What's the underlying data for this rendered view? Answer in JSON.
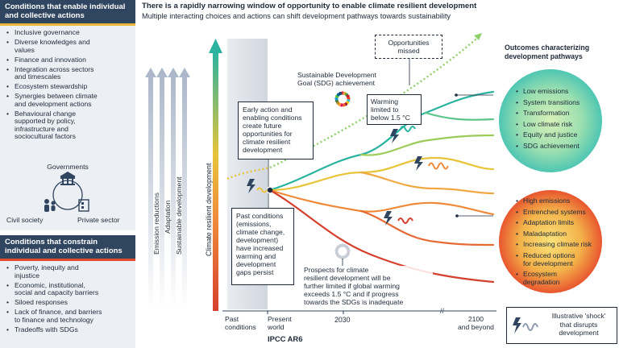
{
  "header": {
    "title": "There is a rapidly narrowing window of opportunity to enable climate resilient development",
    "subtitle": "Multiple interacting choices and actions can shift development pathways towards sustainability"
  },
  "enable_panel": {
    "title_line1": "Conditions that enable individual",
    "title_line2": "and collective actions",
    "items": [
      [
        "Inclusive governance"
      ],
      [
        "Diverse knowledges and",
        "values"
      ],
      [
        "Finance and innovation"
      ],
      [
        "Integration across sectors",
        "and timescales"
      ],
      [
        "Ecosystem stewardship"
      ],
      [
        "Synergies between climate",
        "and development actions"
      ],
      [
        "Behavioural change",
        "supported by policy,",
        "infrastructure and",
        "sociocultural factors"
      ]
    ]
  },
  "actors": {
    "governments": "Governments",
    "civil_society": "Civil society",
    "private_sector": "Private sector"
  },
  "constrain_panel": {
    "title_line1": "Conditions that constrain",
    "title_line2": "individual and collective actions",
    "items": [
      [
        "Poverty, inequity and",
        "injustice"
      ],
      [
        "Economic, institutional,",
        "social and capacity barriers"
      ],
      [
        "Siloed responses"
      ],
      [
        "Lack of finance, and barriers",
        "to finance and technology"
      ],
      [
        "Tradeoffs with SDGs"
      ]
    ]
  },
  "arrows": {
    "emission": "Emission reductions",
    "adaptation": "Adaptation",
    "sustainable": "Sustainable development",
    "crd_axis": "Climate resilient development"
  },
  "callouts": {
    "opportunities": [
      "Opportunities",
      "missed"
    ],
    "sdg": [
      "Sustainable Development",
      "Goal (SDG) achievement"
    ],
    "warming": [
      "Warming",
      "limited to",
      "below 1.5 °C"
    ],
    "early_action": [
      "Early action and",
      "enabling conditions",
      "create future",
      "opportunities for",
      "climate resilient",
      "development"
    ],
    "past_conditions": [
      "Past conditions",
      "(emissions,",
      "climate change,",
      "development)",
      "have increased",
      "warming and",
      "development",
      "gaps persist"
    ],
    "prospects": [
      "Prospects for climate",
      "resilient development will be",
      "further limited if global warming",
      "exceeds 1.5 °C and if progress",
      "towards the SDGs is inadequate"
    ]
  },
  "outcomes": {
    "title": [
      "Outcomes characterizing",
      "development pathways"
    ],
    "positive": [
      "Low emissions",
      "System transitions",
      "Transformation",
      "Low climate risk",
      "Equity and justice",
      "SDG achievement"
    ],
    "negative": [
      [
        "High emissions"
      ],
      [
        "Entrenched systems"
      ],
      [
        "Adaptation limits"
      ],
      [
        "Maladaptation"
      ],
      [
        "Increasing climate risk"
      ],
      [
        "Reduced options",
        "for development"
      ],
      [
        "Ecosystem",
        "degradation"
      ]
    ]
  },
  "timeline": {
    "past": [
      "Past",
      "conditions"
    ],
    "present": [
      "Present",
      "world"
    ],
    "y2030": "2030",
    "y2100": [
      "2100",
      "and beyond"
    ]
  },
  "source": "IPCC AR6",
  "legend": {
    "shock": [
      "Illustrative 'shock'",
      "that disrupts",
      "development"
    ]
  },
  "colors": {
    "panel_header": "#2f4560",
    "enable_accent": "#e9b53a",
    "constrain_accent": "#e24a2e",
    "path_teal": "#2bb3a0",
    "path_yellow": "#e8c43a",
    "path_orange": "#ef8a3a",
    "path_red": "#d5402e"
  },
  "icons": [
    "government-icon",
    "civil-society-icon",
    "private-sector-icon",
    "sdg-wheel-icon",
    "lightning-shock-icon"
  ]
}
